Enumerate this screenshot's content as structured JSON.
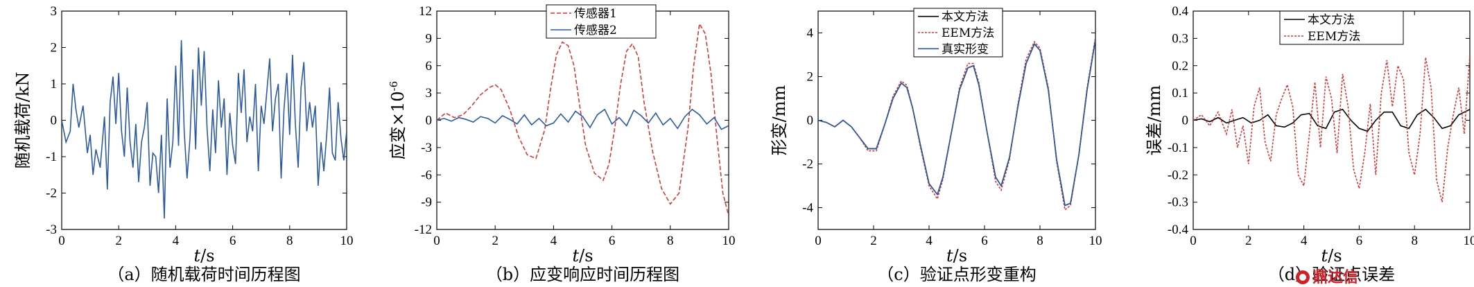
{
  "chart_data": [
    {
      "type": "line",
      "caption": "（a）随机载荷时间历程图",
      "ylabel": "随机载荷/kN",
      "xlabel_var": "t",
      "xlabel_unit": "/s",
      "xlim": [
        0,
        10
      ],
      "ylim": [
        -3,
        3
      ],
      "xticks": [
        "0",
        "2",
        "4",
        "6",
        "8",
        "10"
      ],
      "yticks": [
        "3",
        "2",
        "1",
        "0",
        "-1",
        "-2",
        "-3"
      ],
      "legend": [],
      "series": [
        {
          "color": "#2b5aa0",
          "dash": "",
          "x": [
            0,
            0.15,
            0.3,
            0.4,
            0.5,
            0.6,
            0.75,
            0.9,
            1.0,
            1.1,
            1.2,
            1.35,
            1.5,
            1.6,
            1.7,
            1.8,
            1.9,
            2.0,
            2.1,
            2.2,
            2.3,
            2.4,
            2.5,
            2.6,
            2.7,
            2.8,
            2.9,
            3.0,
            3.1,
            3.2,
            3.3,
            3.4,
            3.5,
            3.6,
            3.7,
            3.8,
            3.9,
            4.0,
            4.1,
            4.2,
            4.3,
            4.4,
            4.5,
            4.6,
            4.7,
            4.8,
            4.9,
            5.0,
            5.1,
            5.2,
            5.3,
            5.4,
            5.5,
            5.6,
            5.7,
            5.8,
            5.9,
            6.0,
            6.1,
            6.2,
            6.3,
            6.4,
            6.5,
            6.6,
            6.7,
            6.8,
            6.9,
            7.0,
            7.1,
            7.2,
            7.3,
            7.4,
            7.5,
            7.6,
            7.7,
            7.8,
            7.9,
            8.0,
            8.1,
            8.2,
            8.3,
            8.4,
            8.5,
            8.6,
            8.7,
            8.8,
            8.9,
            9.0,
            9.1,
            9.2,
            9.3,
            9.4,
            9.5,
            9.6,
            9.7,
            9.8,
            9.9,
            10.0
          ],
          "y": [
            0,
            -0.6,
            -0.3,
            1.0,
            0.3,
            -0.2,
            0.4,
            -0.9,
            -0.4,
            -1.5,
            -0.8,
            -1.3,
            0.1,
            -1.9,
            0.5,
            1.2,
            -0.1,
            1.3,
            -0.3,
            -1.0,
            0.9,
            -0.6,
            -1.3,
            -0.1,
            -1.7,
            -0.6,
            -0.2,
            0.5,
            -1.8,
            -0.9,
            -1.0,
            -2.0,
            -0.4,
            -2.7,
            0.6,
            -1.3,
            -0.6,
            1.5,
            -0.7,
            2.2,
            -0.3,
            -1.6,
            -0.5,
            1.4,
            -0.8,
            2.0,
            0.4,
            1.9,
            -0.2,
            -1.4,
            0.3,
            -0.9,
            1.1,
            -0.2,
            0.6,
            -1.5,
            0.2,
            -0.7,
            -1.2,
            1.3,
            0.2,
            1.4,
            -0.6,
            0.1,
            -0.3,
            1.0,
            -1.4,
            0.4,
            -0.1,
            0.8,
            1.7,
            -0.3,
            0.6,
            1.0,
            -1.6,
            0.3,
            1.3,
            -0.4,
            1.8,
            -0.1,
            -1.3,
            0.9,
            1.6,
            -0.3,
            0.5,
            -0.2,
            0.4,
            -1.8,
            -0.6,
            -1.4,
            -0.4,
            0.9,
            -0.9,
            -1.1,
            0.5,
            -0.5,
            -1.1,
            -0.3
          ]
        }
      ]
    },
    {
      "type": "line",
      "caption": "（b）应变响应时间历程图",
      "ylabel": "应变×10",
      "ylabel_sup": "-6",
      "xlabel_var": "t",
      "xlabel_unit": "/s",
      "xlim": [
        0,
        10
      ],
      "ylim": [
        -12,
        12
      ],
      "xticks": [
        "0",
        "2",
        "4",
        "6",
        "8",
        "10"
      ],
      "yticks": [
        "12",
        "9",
        "6",
        "3",
        "0",
        "-3",
        "-6",
        "-9",
        "-12"
      ],
      "legend": [
        "传感器1",
        "传感器2"
      ],
      "series": [
        {
          "name": "传感器1",
          "color": "#d23a3a",
          "dash": "6,3",
          "x": [
            0,
            0.3,
            0.6,
            0.9,
            1.2,
            1.5,
            1.8,
            2.0,
            2.2,
            2.5,
            2.8,
            3.1,
            3.4,
            3.7,
            3.9,
            4.1,
            4.3,
            4.5,
            4.7,
            4.9,
            5.1,
            5.4,
            5.7,
            5.9,
            6.1,
            6.3,
            6.5,
            6.7,
            6.9,
            7.1,
            7.4,
            7.7,
            8.0,
            8.3,
            8.6,
            8.8,
            9.0,
            9.2,
            9.4,
            9.6,
            9.8,
            10.0
          ],
          "y": [
            0,
            0.8,
            0.3,
            0.6,
            1.6,
            2.8,
            3.6,
            3.9,
            3.4,
            1.2,
            -1.8,
            -3.8,
            -4.2,
            -1.0,
            3.5,
            7.2,
            8.6,
            8.2,
            6.0,
            1.5,
            -2.8,
            -5.8,
            -6.6,
            -4.8,
            -0.8,
            4.0,
            7.6,
            8.4,
            7.0,
            2.0,
            -3.5,
            -7.5,
            -9.2,
            -8.0,
            -1.0,
            6.0,
            10.6,
            9.5,
            5.0,
            -2.0,
            -8.0,
            -10.5
          ]
        },
        {
          "name": "传感器2",
          "color": "#2b5aa0",
          "dash": "",
          "x": [
            0,
            0.25,
            0.5,
            0.75,
            1.0,
            1.25,
            1.5,
            1.75,
            2.0,
            2.25,
            2.5,
            2.75,
            3.0,
            3.25,
            3.5,
            3.75,
            4.0,
            4.25,
            4.5,
            4.75,
            5.0,
            5.25,
            5.5,
            5.75,
            6.0,
            6.25,
            6.5,
            6.75,
            7.0,
            7.25,
            7.5,
            7.75,
            8.0,
            8.25,
            8.5,
            8.75,
            9.0,
            9.25,
            9.5,
            9.75,
            10.0
          ],
          "y": [
            0,
            0.2,
            -0.1,
            0.3,
            0.1,
            -0.2,
            0.4,
            0.2,
            -0.3,
            0.5,
            0.1,
            -0.4,
            0.6,
            -0.5,
            0.2,
            -0.6,
            -0.3,
            0.7,
            -0.2,
            1.0,
            0.4,
            -0.8,
            0.6,
            1.2,
            -0.4,
            0.3,
            -0.6,
            1.1,
            0.5,
            -0.3,
            0.8,
            -0.5,
            0.2,
            -0.9,
            0.4,
            1.2,
            0.6,
            -0.4,
            0.3,
            -1.0,
            -0.6
          ]
        }
      ]
    },
    {
      "type": "line",
      "caption": "（c）验证点形变重构",
      "ylabel": "形变/mm",
      "xlabel_var": "t",
      "xlabel_unit": "/s",
      "xlim": [
        0,
        10
      ],
      "ylim": [
        -5,
        5
      ],
      "xticks": [
        "0",
        "2",
        "4",
        "6",
        "8",
        "10"
      ],
      "yticks": [
        "4",
        "2",
        "0",
        "-2",
        "-4"
      ],
      "legend": [
        "本文方法",
        "EEM方法",
        "真实形变"
      ],
      "series": [
        {
          "name": "本文方法",
          "color": "#000000",
          "dash": "",
          "x": [
            0,
            0.3,
            0.6,
            0.9,
            1.2,
            1.5,
            1.8,
            2.1,
            2.4,
            2.7,
            3.0,
            3.2,
            3.4,
            3.7,
            4.0,
            4.3,
            4.5,
            4.8,
            5.1,
            5.4,
            5.6,
            5.8,
            6.1,
            6.4,
            6.6,
            6.9,
            7.2,
            7.5,
            7.8,
            8.0,
            8.3,
            8.6,
            8.9,
            9.1,
            9.4,
            9.7,
            10.0
          ],
          "y": [
            0,
            -0.1,
            -0.3,
            0.0,
            -0.3,
            -0.8,
            -1.3,
            -1.3,
            -0.2,
            1.0,
            1.7,
            1.5,
            0.6,
            -1.2,
            -2.9,
            -3.4,
            -2.6,
            -0.6,
            1.4,
            2.4,
            2.5,
            1.6,
            -0.6,
            -2.6,
            -3.0,
            -1.7,
            0.6,
            2.6,
            3.5,
            3.2,
            1.4,
            -1.8,
            -3.9,
            -3.8,
            -1.6,
            1.4,
            3.7
          ]
        },
        {
          "name": "EEM方法",
          "color": "#d23a3a",
          "dash": "3,2",
          "x": [
            0,
            0.3,
            0.6,
            0.9,
            1.2,
            1.5,
            1.8,
            2.1,
            2.4,
            2.7,
            3.0,
            3.2,
            3.4,
            3.7,
            4.0,
            4.3,
            4.5,
            4.8,
            5.1,
            5.4,
            5.6,
            5.8,
            6.1,
            6.4,
            6.6,
            6.9,
            7.2,
            7.5,
            7.8,
            8.0,
            8.3,
            8.6,
            8.9,
            9.1,
            9.4,
            9.7,
            10.0
          ],
          "y": [
            0,
            -0.1,
            -0.3,
            0.0,
            -0.3,
            -0.8,
            -1.4,
            -1.4,
            -0.2,
            1.1,
            1.8,
            1.6,
            0.6,
            -1.3,
            -3.0,
            -3.6,
            -2.7,
            -0.6,
            1.5,
            2.6,
            2.6,
            1.7,
            -0.6,
            -2.8,
            -3.2,
            -1.8,
            0.7,
            2.8,
            3.6,
            3.3,
            1.5,
            -1.9,
            -4.1,
            -3.9,
            -1.6,
            1.5,
            3.8
          ]
        },
        {
          "name": "真实形变",
          "color": "#2b5aa0",
          "dash": "",
          "x": [
            0,
            0.3,
            0.6,
            0.9,
            1.2,
            1.5,
            1.8,
            2.1,
            2.4,
            2.7,
            3.0,
            3.2,
            3.4,
            3.7,
            4.0,
            4.3,
            4.5,
            4.8,
            5.1,
            5.4,
            5.6,
            5.8,
            6.1,
            6.4,
            6.6,
            6.9,
            7.2,
            7.5,
            7.8,
            8.0,
            8.3,
            8.6,
            8.9,
            9.1,
            9.4,
            9.7,
            10.0
          ],
          "y": [
            0,
            -0.1,
            -0.3,
            0.0,
            -0.3,
            -0.8,
            -1.3,
            -1.3,
            -0.2,
            1.0,
            1.7,
            1.5,
            0.6,
            -1.2,
            -2.9,
            -3.4,
            -2.6,
            -0.6,
            1.4,
            2.4,
            2.5,
            1.6,
            -0.6,
            -2.6,
            -3.0,
            -1.7,
            0.6,
            2.6,
            3.5,
            3.2,
            1.4,
            -1.8,
            -3.9,
            -3.8,
            -1.6,
            1.4,
            3.7
          ]
        }
      ]
    },
    {
      "type": "line",
      "caption": "（d）验证点误差",
      "ylabel": "误差/mm",
      "xlabel_var": "t",
      "xlabel_unit": "/s",
      "xlim": [
        0,
        10
      ],
      "ylim": [
        -0.4,
        0.4
      ],
      "xticks": [
        "0",
        "2",
        "4",
        "6",
        "8",
        "10"
      ],
      "yticks": [
        "0.4",
        "0.3",
        "0.2",
        "0.1",
        "0",
        "-0.1",
        "-0.2",
        "-0.3",
        "-0.4"
      ],
      "legend": [
        "本文方法",
        "EEM方法"
      ],
      "series": [
        {
          "name": "本文方法",
          "color": "#000000",
          "dash": "",
          "x": [
            0,
            0.3,
            0.6,
            0.9,
            1.2,
            1.5,
            1.8,
            2.1,
            2.4,
            2.7,
            3.0,
            3.3,
            3.6,
            3.9,
            4.2,
            4.5,
            4.8,
            5.1,
            5.4,
            5.7,
            6.0,
            6.3,
            6.6,
            6.9,
            7.2,
            7.5,
            7.8,
            8.1,
            8.4,
            8.7,
            9.0,
            9.3,
            9.6,
            10.0
          ],
          "y": [
            0,
            0.005,
            -0.005,
            0.01,
            -0.01,
            0.0,
            0.01,
            -0.01,
            0.0,
            0.02,
            -0.02,
            -0.025,
            -0.01,
            0.02,
            0.025,
            -0.02,
            -0.03,
            0.03,
            0.04,
            0.0,
            -0.03,
            -0.04,
            0.0,
            0.03,
            0.03,
            -0.02,
            -0.03,
            0.02,
            0.04,
            0.01,
            -0.03,
            -0.02,
            0.02,
            0.04
          ]
        },
        {
          "name": "EEM方法",
          "color": "#d23a3a",
          "dash": "3,2",
          "x": [
            0,
            0.3,
            0.6,
            0.9,
            1.2,
            1.4,
            1.6,
            1.8,
            2.0,
            2.2,
            2.4,
            2.6,
            2.8,
            3.0,
            3.2,
            3.4,
            3.6,
            3.8,
            4.0,
            4.2,
            4.4,
            4.6,
            4.8,
            5.0,
            5.2,
            5.4,
            5.6,
            5.8,
            6.0,
            6.2,
            6.4,
            6.6,
            6.8,
            7.0,
            7.2,
            7.4,
            7.6,
            7.8,
            8.0,
            8.2,
            8.4,
            8.6,
            8.8,
            9.0,
            9.2,
            9.4,
            9.6,
            9.8,
            10.0
          ],
          "y": [
            0,
            0.02,
            -0.02,
            0.03,
            -0.05,
            0.04,
            -0.1,
            -0.02,
            -0.16,
            0.05,
            0.12,
            -0.08,
            -0.15,
            0.02,
            0.08,
            0.13,
            0.05,
            -0.2,
            -0.24,
            -0.05,
            0.14,
            -0.1,
            0.16,
            0.08,
            -0.12,
            0.17,
            0.05,
            -0.18,
            -0.25,
            -0.12,
            0.06,
            -0.2,
            0.1,
            0.22,
            0.05,
            0.2,
            0.15,
            -0.12,
            -0.2,
            -0.05,
            0.23,
            0.12,
            -0.22,
            -0.3,
            -0.1,
            0.02,
            0.12,
            -0.05,
            0.24
          ]
        }
      ]
    }
  ]
}
